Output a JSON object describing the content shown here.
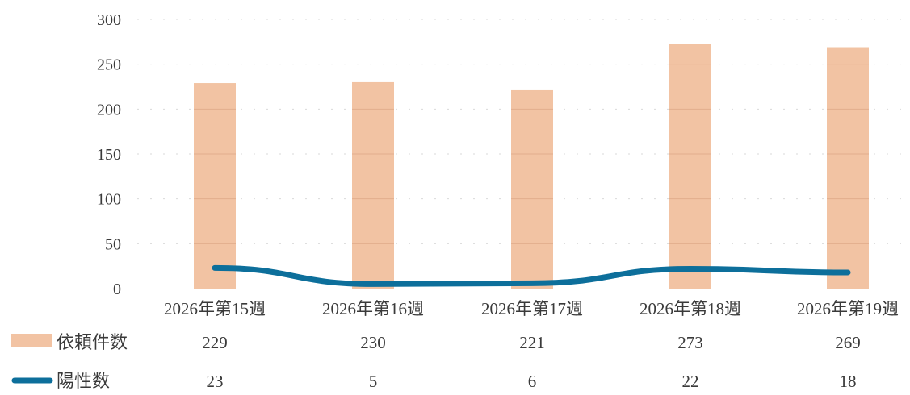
{
  "chart_data": {
    "type": "bar",
    "categories": [
      "2026年第15週",
      "2026年第16週",
      "2026年第17週",
      "2026年第18週",
      "2026年第19週"
    ],
    "series": [
      {
        "name": "依頼件数",
        "type": "bar",
        "values": [
          229,
          230,
          221,
          273,
          269
        ],
        "color": "#f2c3a3"
      },
      {
        "name": "陽性数",
        "type": "line",
        "values": [
          23,
          5,
          6,
          22,
          18
        ],
        "color": "#0d6f9b"
      }
    ],
    "yticks": [
      0,
      50,
      100,
      150,
      200,
      250,
      300
    ],
    "ylim": [
      0,
      300
    ],
    "grid": true,
    "legend": "data-table-below"
  }
}
